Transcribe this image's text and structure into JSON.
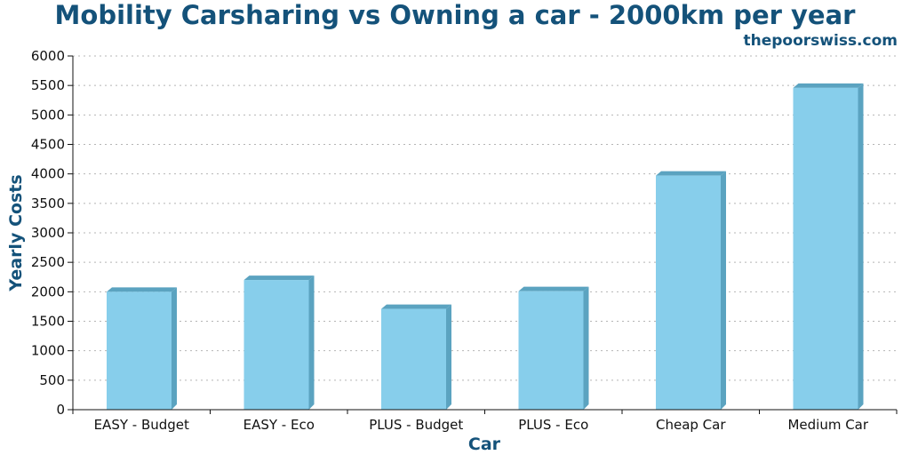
{
  "chart_data": {
    "type": "bar",
    "title": "Mobility Carsharing vs Owning a car - 2000km per year",
    "source": "thepoorswiss.com",
    "xlabel": "Car",
    "ylabel": "Yearly Costs",
    "categories": [
      "EASY - Budget",
      "EASY - Eco",
      "PLUS - Budget",
      "PLUS - Eco",
      "Cheap Car",
      "Medium Car"
    ],
    "values": [
      2000,
      2200,
      1710,
      2010,
      3970,
      5460
    ],
    "ylim": [
      0,
      6000
    ],
    "yticks": [
      "0",
      "500",
      "1000",
      "1500",
      "2000",
      "2500",
      "3000",
      "3500",
      "4000",
      "4500",
      "5000",
      "5500",
      "6000"
    ],
    "grid": "horizontal-dotted",
    "legend": "none",
    "colors": {
      "bar_front": "#87ceeb",
      "bar_side": "#5ba3c0",
      "title": "#14527a",
      "grid": "#b5b5b5"
    }
  }
}
